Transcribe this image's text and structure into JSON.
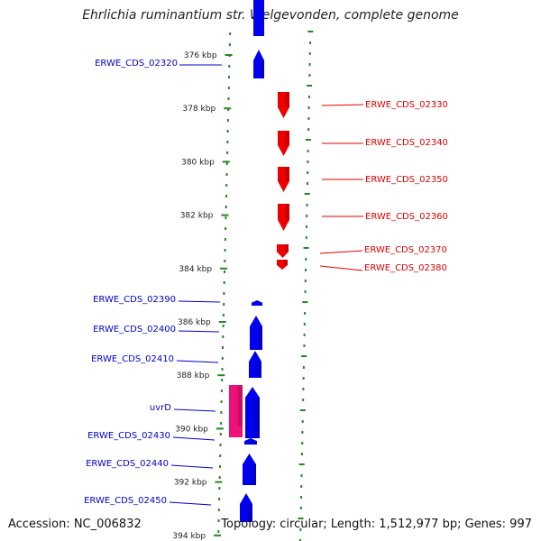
{
  "title": "Ehrlichia ruminantium str. Welgevonden, complete genome",
  "footer": {
    "accession": "Accession: NC_006832",
    "topology": "Topology: circular; Length: 1,512,977 bp; Genes: 997"
  },
  "ticks": [
    {
      "label": "376 kbp",
      "kbp": 376
    },
    {
      "label": "378 kbp",
      "kbp": 378
    },
    {
      "label": "380 kbp",
      "kbp": 380
    },
    {
      "label": "382 kbp",
      "kbp": 382
    },
    {
      "label": "384 kbp",
      "kbp": 384
    },
    {
      "label": "386 kbp",
      "kbp": 386
    },
    {
      "label": "388 kbp",
      "kbp": 388
    },
    {
      "label": "390 kbp",
      "kbp": 390
    },
    {
      "label": "392 kbp",
      "kbp": 392
    },
    {
      "label": "394 kbp",
      "kbp": 394
    }
  ],
  "genes": [
    {
      "label": "ERWE_CDS_02320",
      "strand": "forward",
      "color": "#0000ee"
    },
    {
      "label": "ERWE_CDS_02330",
      "strand": "reverse",
      "color": "#ee0000"
    },
    {
      "label": "ERWE_CDS_02340",
      "strand": "reverse",
      "color": "#ee0000"
    },
    {
      "label": "ERWE_CDS_02350",
      "strand": "reverse",
      "color": "#ee0000"
    },
    {
      "label": "ERWE_CDS_02360",
      "strand": "reverse",
      "color": "#ee0000"
    },
    {
      "label": "ERWE_CDS_02370",
      "strand": "reverse",
      "color": "#ee0000"
    },
    {
      "label": "ERWE_CDS_02380",
      "strand": "reverse",
      "color": "#ee0000"
    },
    {
      "label": "ERWE_CDS_02390",
      "strand": "forward",
      "color": "#0000ee"
    },
    {
      "label": "ERWE_CDS_02400",
      "strand": "forward",
      "color": "#0000ee"
    },
    {
      "label": "ERWE_CDS_02410",
      "strand": "forward",
      "color": "#0000ee"
    },
    {
      "label": "uvrD",
      "strand": "forward",
      "color": "#ee1177"
    },
    {
      "label": "ERWE_CDS_02430",
      "strand": "forward",
      "color": "#0000ee"
    },
    {
      "label": "ERWE_CDS_02440",
      "strand": "forward",
      "color": "#0000ee"
    },
    {
      "label": "ERWE_CDS_02450",
      "strand": "forward",
      "color": "#0000ee"
    }
  ],
  "colors": {
    "forward": "#0000ee",
    "reverse": "#ee0000",
    "rna_gene": "#ee1177",
    "backbone": "#888888",
    "gc_dots": "#228822"
  }
}
